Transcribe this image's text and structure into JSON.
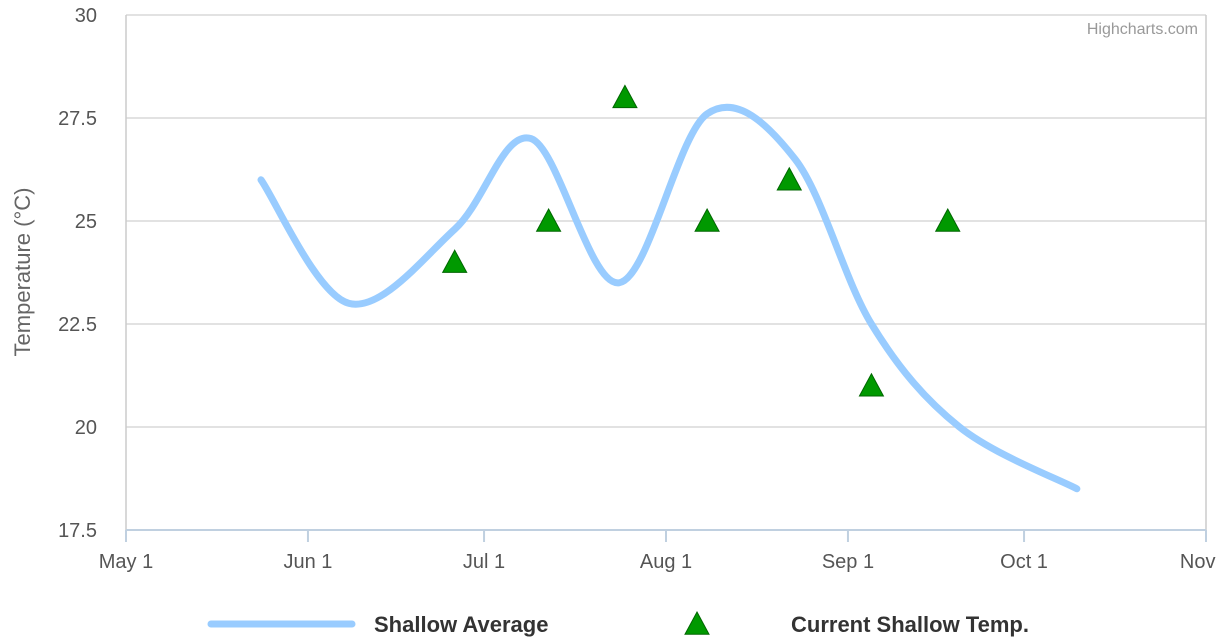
{
  "chart_data": {
    "type": "line",
    "credit": "Highcharts.com",
    "ylabel": "Temperature (°C)",
    "xlabel": "",
    "ylim": [
      17.5,
      30
    ],
    "yticks": [
      "17.5",
      "20",
      "22.5",
      "25",
      "27.5",
      "30"
    ],
    "xlim": [
      "2024-05-01",
      "2024-11-01"
    ],
    "xticks": [
      {
        "date": "2024-05-01",
        "label": "May 1"
      },
      {
        "date": "2024-06-01",
        "label": "Jun 1"
      },
      {
        "date": "2024-07-01",
        "label": "Jul 1"
      },
      {
        "date": "2024-08-01",
        "label": "Aug 1"
      },
      {
        "date": "2024-09-01",
        "label": "Sep 1"
      },
      {
        "date": "2024-10-01",
        "label": "Oct 1"
      },
      {
        "date": "2024-11-01",
        "label": "Nov 1"
      }
    ],
    "grid": true,
    "legend_position": "bottom",
    "series": [
      {
        "name": "Shallow Average",
        "type": "spline",
        "color": "#99ccff",
        "points": [
          {
            "x": "2024-05-24",
            "y": 26
          },
          {
            "x": "2024-06-08",
            "y": 23
          },
          {
            "x": "2024-06-26",
            "y": 24.8
          },
          {
            "x": "2024-07-09",
            "y": 27
          },
          {
            "x": "2024-07-24",
            "y": 23.5
          },
          {
            "x": "2024-08-08",
            "y": 27.6
          },
          {
            "x": "2024-08-23",
            "y": 26.5
          },
          {
            "x": "2024-09-05",
            "y": 22.5
          },
          {
            "x": "2024-09-20",
            "y": 20
          },
          {
            "x": "2024-10-10",
            "y": 18.5
          }
        ]
      },
      {
        "name": "Current Shallow Temp.",
        "type": "scatter",
        "marker": "triangle",
        "color": "#009900",
        "points": [
          {
            "x": "2024-06-26",
            "y": 24
          },
          {
            "x": "2024-07-12",
            "y": 25
          },
          {
            "x": "2024-07-25",
            "y": 28
          },
          {
            "x": "2024-08-08",
            "y": 25
          },
          {
            "x": "2024-08-22",
            "y": 26
          },
          {
            "x": "2024-09-05",
            "y": 21
          },
          {
            "x": "2024-09-18",
            "y": 25
          }
        ]
      }
    ]
  }
}
